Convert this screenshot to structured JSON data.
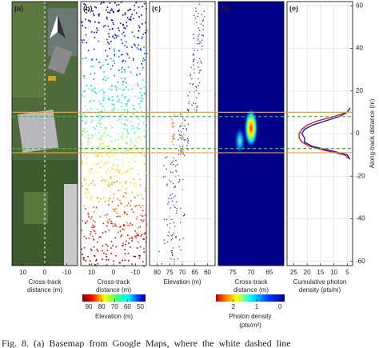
{
  "y_axis": {
    "label": "Along-track distance (m)",
    "ylim": [
      -62,
      62
    ],
    "yticks": [
      60,
      40,
      20,
      0,
      -20,
      -40,
      -60
    ]
  },
  "bounds": {
    "orange": [
      10,
      -9
    ],
    "green": [
      8,
      -7
    ]
  },
  "panels": [
    {
      "tag": "(a)",
      "type": "image",
      "xlabel": [
        "Cross-track",
        "distance (m)"
      ],
      "xlim": [
        15,
        -15
      ],
      "xticks": [
        10,
        0,
        -10
      ]
    },
    {
      "tag": "(b)",
      "type": "scatter",
      "xlabel": [
        "Cross-track",
        "distance (m)"
      ],
      "xlim": [
        15,
        -15
      ],
      "xticks": [
        10,
        0,
        -10
      ]
    },
    {
      "tag": "(c)",
      "type": "scatter",
      "xlabel": [
        "Elevation (m)"
      ],
      "xlim": [
        83,
        57
      ],
      "xticks": [
        80,
        75,
        70,
        65,
        60
      ],
      "grid": true
    },
    {
      "tag": "(d)",
      "type": "heatmap",
      "xlabel": [
        "Cross-track",
        "distance (m)"
      ],
      "xlim": [
        79,
        61
      ],
      "xticks": [
        75,
        70,
        65
      ]
    },
    {
      "tag": "(e)",
      "type": "line",
      "xlabel": [
        "Cumulative photon",
        "density (pts/m)"
      ],
      "xlim": [
        27.5,
        3
      ],
      "xticks": [
        25,
        20,
        15,
        10,
        5
      ],
      "grid": true,
      "y": [
        12,
        10,
        8,
        6,
        4,
        2,
        0,
        -2,
        -4,
        -6,
        -8,
        -10,
        -12
      ],
      "series": [
        {
          "color": "#e41a1c",
          "values": [
            4,
            5,
            10,
            16,
            20,
            22,
            23,
            23,
            22,
            19,
            13,
            6,
            4
          ]
        },
        {
          "color": "#1a1ab8",
          "values": [
            4,
            5,
            8,
            13,
            18,
            21,
            22,
            21,
            21,
            18,
            11,
            5,
            4
          ]
        }
      ]
    }
  ],
  "colorbars": [
    {
      "label": [
        "Elevation (m)"
      ],
      "lim": [
        95,
        46
      ],
      "ticks": [
        90,
        80,
        70,
        60,
        50
      ]
    },
    {
      "label": [
        "Photon density",
        "(pts/m²)"
      ],
      "lim": [
        2.75,
        -0.2
      ],
      "ticks": [
        2,
        1,
        0
      ]
    }
  ],
  "caption": "Fig. 8.    (a) Basemap from Google Maps, where the white dashed line"
}
